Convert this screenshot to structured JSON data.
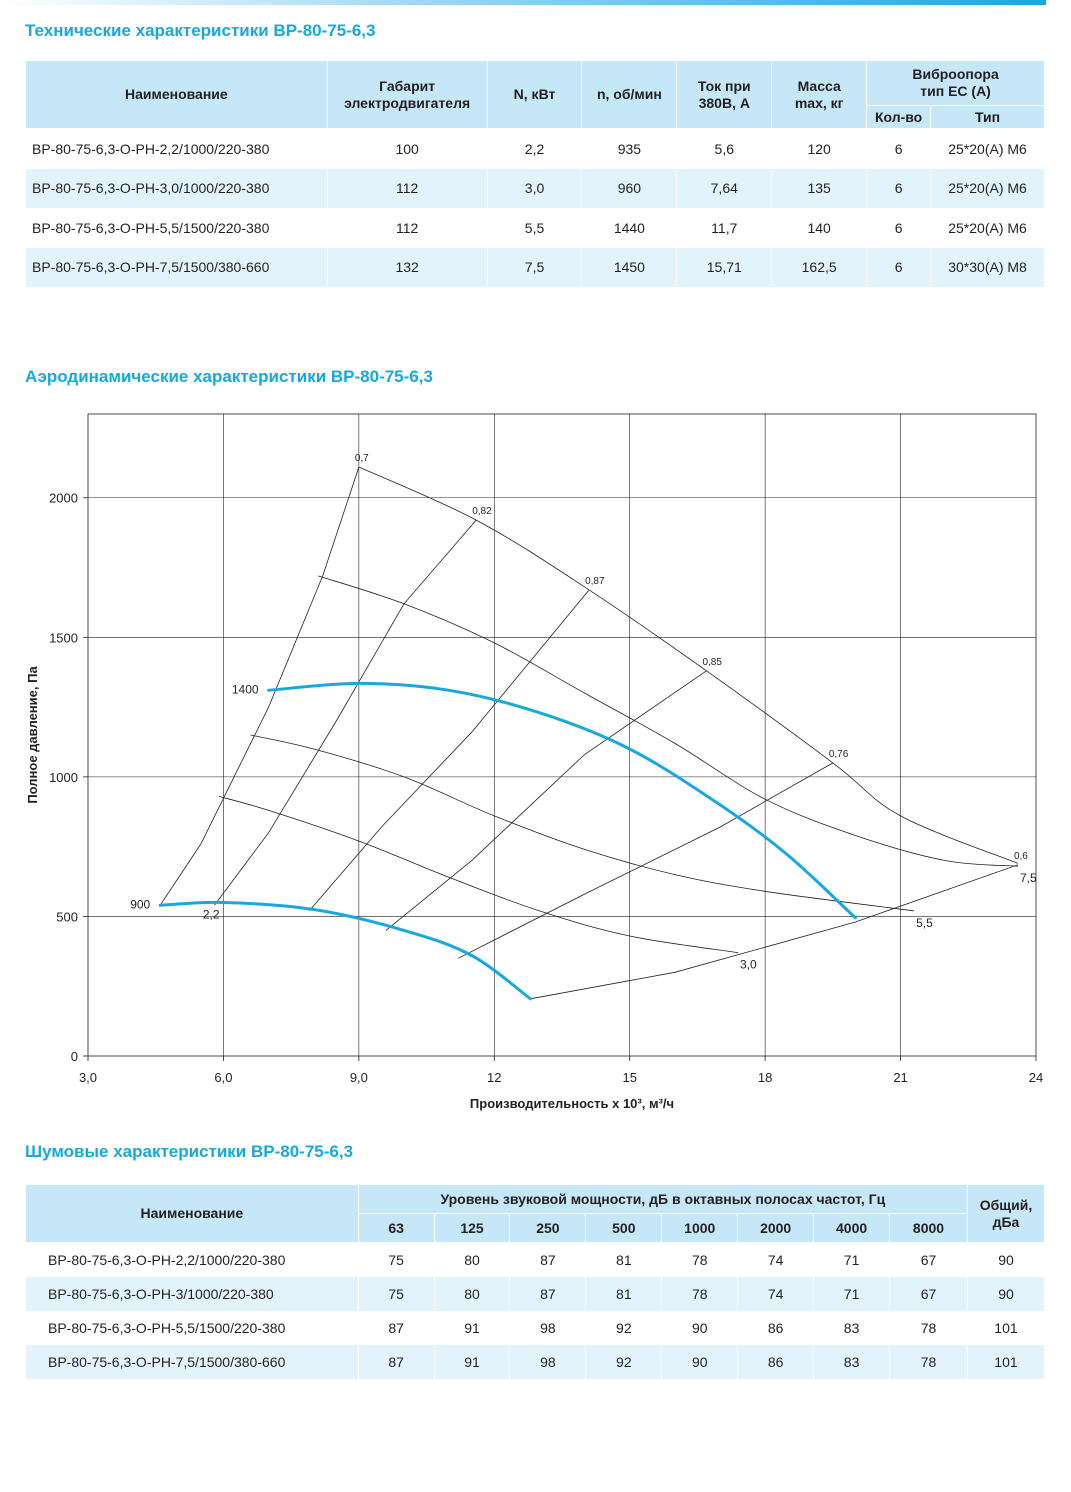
{
  "tech": {
    "title": "Технические характеристики ВР-80-75-6,3",
    "headers": {
      "name": "Наименование",
      "gabarit_line1": "Габарит",
      "gabarit_line2": "электродвигателя",
      "power": "N, кВт",
      "speed": "n, об/мин",
      "current_line1": "Ток при",
      "current_line2": "380В, А",
      "mass_line1": "Масса",
      "mass_line2": "max, кг",
      "vibro_line1": "Виброопора",
      "vibro_line2": "тип ЕС (А)",
      "vibro_count": "Кол-во",
      "vibro_type": "Тип"
    },
    "rows": [
      {
        "name": "ВР-80-75-6,3-О-РН-2,2/1000/220-380",
        "gabarit": "100",
        "power": "2,2",
        "speed": "935",
        "current": "5,6",
        "mass": "120",
        "count": "6",
        "type": "25*20(А) М6"
      },
      {
        "name": "ВР-80-75-6,3-О-РН-3,0/1000/220-380",
        "gabarit": "112",
        "power": "3,0",
        "speed": "960",
        "current": "7,64",
        "mass": "135",
        "count": "6",
        "type": "25*20(А) М6"
      },
      {
        "name": "ВР-80-75-6,3-О-РН-5,5/1500/220-380",
        "gabarit": "112",
        "power": "5,5",
        "speed": "1440",
        "current": "11,7",
        "mass": "140",
        "count": "6",
        "type": "25*20(А) М6"
      },
      {
        "name": "ВР-80-75-6,3-О-РН-7,5/1500/380-660",
        "gabarit": "132",
        "power": "7,5",
        "speed": "1450",
        "current": "15,71",
        "mass": "162,5",
        "count": "6",
        "type": "30*30(А) М8"
      }
    ]
  },
  "aero": {
    "title": "Аэродинамические характеристики ВР-80-75-6,3"
  },
  "chart_data": {
    "type": "line",
    "xlabel": "Производительность х 10³, м³/ч",
    "ylabel": "Полное давление, Па",
    "xlim": [
      3,
      24
    ],
    "ylim": [
      0,
      2300
    ],
    "x_ticks": [
      "3,0",
      "6,0",
      "9,0",
      "12",
      "15",
      "18",
      "21",
      "24"
    ],
    "y_ticks": [
      "0",
      "500",
      "1000",
      "1500",
      "2000"
    ],
    "grid": true,
    "highlight_color": "#18a8e0",
    "speed_curves": [
      {
        "label": "1400",
        "points": [
          [
            7.0,
            1310
          ],
          [
            9.0,
            1335
          ],
          [
            11.0,
            1310
          ],
          [
            13.0,
            1230
          ],
          [
            15.0,
            1100
          ],
          [
            17.0,
            900
          ],
          [
            18.5,
            720
          ],
          [
            20.0,
            495
          ]
        ]
      },
      {
        "label": "900",
        "points": [
          [
            4.6,
            540
          ],
          [
            6.0,
            550
          ],
          [
            8.0,
            525
          ],
          [
            10.0,
            450
          ],
          [
            11.5,
            360
          ],
          [
            12.8,
            205
          ]
        ]
      }
    ],
    "power_curves": [
      {
        "label": "7,5",
        "points": [
          [
            8.1,
            1720
          ],
          [
            10.0,
            1620
          ],
          [
            12.0,
            1480
          ],
          [
            14.0,
            1300
          ],
          [
            16.0,
            1120
          ],
          [
            18.0,
            920
          ],
          [
            20.0,
            790
          ],
          [
            22.0,
            700
          ],
          [
            23.6,
            680
          ]
        ]
      },
      {
        "label": "5,5",
        "points": [
          [
            6.6,
            1150
          ],
          [
            8.0,
            1100
          ],
          [
            10.0,
            1000
          ],
          [
            12.0,
            860
          ],
          [
            14.0,
            740
          ],
          [
            16.0,
            650
          ],
          [
            18.0,
            590
          ],
          [
            21.3,
            520
          ]
        ]
      },
      {
        "label": "3,0",
        "points": [
          [
            5.9,
            930
          ],
          [
            7.0,
            880
          ],
          [
            9.0,
            770
          ],
          [
            11.0,
            640
          ],
          [
            13.0,
            520
          ],
          [
            15.0,
            430
          ],
          [
            17.4,
            370
          ]
        ]
      },
      {
        "label": "2,2",
        "points": [
          [
            4.6,
            540
          ],
          [
            5.5,
            550
          ]
        ]
      }
    ],
    "efficiency_lines": [
      {
        "label": "0,7",
        "points": [
          [
            4.6,
            540
          ],
          [
            5.5,
            760
          ],
          [
            7.0,
            1250
          ],
          [
            8.2,
            1720
          ],
          [
            9.0,
            2110
          ]
        ]
      },
      {
        "label": "0,82",
        "points": [
          [
            5.8,
            540
          ],
          [
            7.0,
            800
          ],
          [
            8.5,
            1200
          ],
          [
            10.0,
            1620
          ],
          [
            11.6,
            1920
          ]
        ]
      },
      {
        "label": "0,87",
        "points": [
          [
            7.9,
            520
          ],
          [
            9.5,
            820
          ],
          [
            11.5,
            1160
          ],
          [
            14.1,
            1670
          ]
        ]
      },
      {
        "label": "0,85",
        "points": [
          [
            9.6,
            450
          ],
          [
            11.5,
            700
          ],
          [
            14.0,
            1080
          ],
          [
            16.7,
            1380
          ]
        ]
      },
      {
        "label": "0,76",
        "points": [
          [
            11.2,
            350
          ],
          [
            14.0,
            580
          ],
          [
            17.0,
            820
          ],
          [
            19.5,
            1050
          ]
        ]
      },
      {
        "label": "0,6",
        "points": [
          [
            12.8,
            205
          ],
          [
            16.0,
            300
          ],
          [
            20.0,
            480
          ],
          [
            23.6,
            685
          ]
        ]
      }
    ],
    "pressure_envelope": {
      "points": [
        [
          9.0,
          2110
        ],
        [
          11.6,
          1920
        ],
        [
          14.1,
          1670
        ],
        [
          16.7,
          1380
        ],
        [
          19.5,
          1050
        ],
        [
          21.0,
          860
        ],
        [
          23.6,
          690
        ]
      ]
    }
  },
  "noise": {
    "title": "Шумовые характеристики ВР-80-75-6,3",
    "headers": {
      "name": "Наименование",
      "level": "Уровень звуковой мощности, дБ в октавных полосах частот, Гц",
      "total_line1": "Общий,",
      "total_line2": "дБа",
      "freqs": [
        "63",
        "125",
        "250",
        "500",
        "1000",
        "2000",
        "4000",
        "8000"
      ]
    },
    "rows": [
      {
        "name": "ВР-80-75-6,3-О-РН-2,2/1000/220-380",
        "values": [
          "75",
          "80",
          "87",
          "81",
          "78",
          "74",
          "71",
          "67"
        ],
        "total": "90"
      },
      {
        "name": "ВР-80-75-6,3-О-РН-3/1000/220-380",
        "values": [
          "75",
          "80",
          "87",
          "81",
          "78",
          "74",
          "71",
          "67"
        ],
        "total": "90"
      },
      {
        "name": "ВР-80-75-6,3-О-РН-5,5/1500/220-380",
        "values": [
          "87",
          "91",
          "98",
          "92",
          "90",
          "86",
          "83",
          "78"
        ],
        "total": "101"
      },
      {
        "name": "ВР-80-75-6,3-О-РН-7,5/1500/380-660",
        "values": [
          "87",
          "91",
          "98",
          "92",
          "90",
          "86",
          "83",
          "78"
        ],
        "total": "101"
      }
    ]
  }
}
